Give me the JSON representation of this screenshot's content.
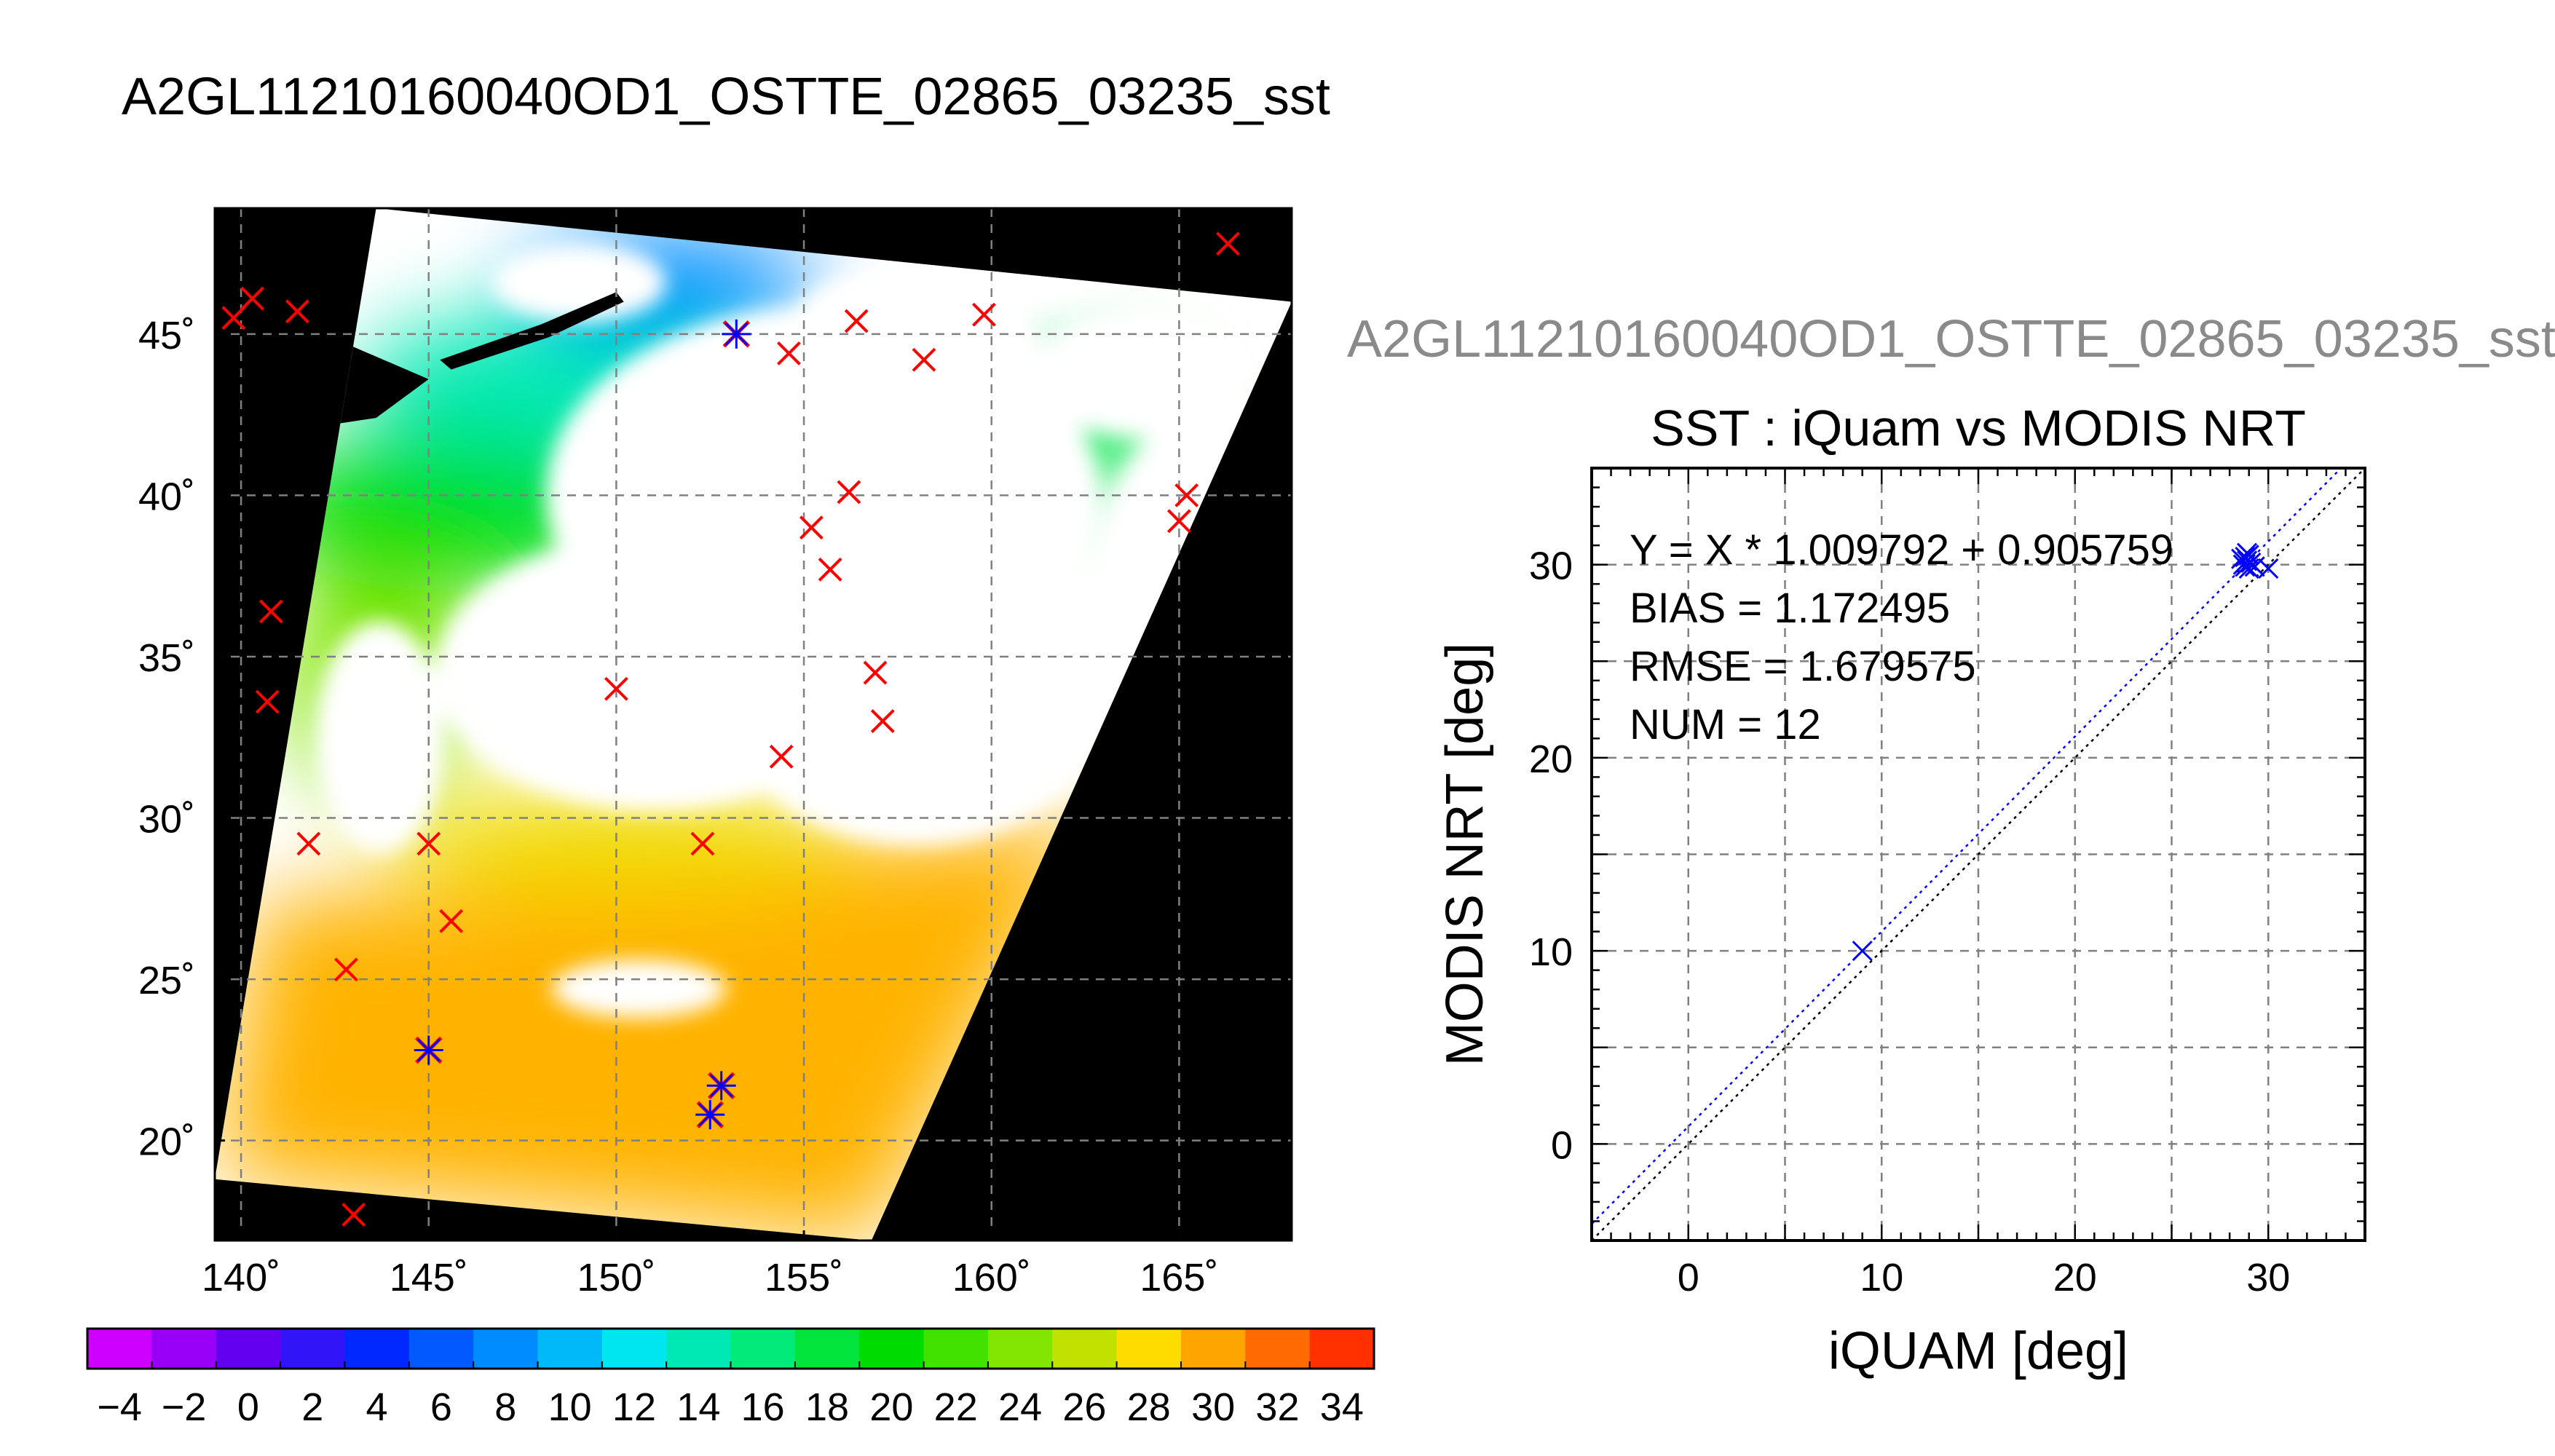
{
  "title": "A2GL11210160040OD1_OSTTE_02865_03235_sst",
  "colors": {
    "background": "#ffffff",
    "cloud_mask": "#ffffff",
    "no_data": "#000000",
    "iquam_marker": "#ff0000",
    "matchup_marker": "#0000ff",
    "fit_line": "#0000ff",
    "identity_line": "#000000",
    "grid": "#808080"
  },
  "chart_data": [
    {
      "type": "heatmap",
      "name": "SST swath map",
      "xlabel": "",
      "ylabel": "",
      "xlim": [
        139.3,
        168.0
      ],
      "ylim": [
        16.9,
        48.9
      ],
      "lon_ticks": [
        140,
        145,
        150,
        155,
        160,
        165
      ],
      "lat_ticks": [
        20,
        25,
        30,
        35,
        40,
        45
      ],
      "lon_tick_labels": [
        "140˚",
        "145˚",
        "150˚",
        "155˚",
        "160˚",
        "165˚"
      ],
      "lat_tick_labels": [
        "20˚",
        "25˚",
        "30˚",
        "35˚",
        "40˚",
        "45˚"
      ],
      "grid": true,
      "swath_corners": [
        {
          "lon": 143.6,
          "lat": 48.9
        },
        {
          "lon": 168.0,
          "lat": 46.0
        },
        {
          "lon": 156.8,
          "lat": 16.9
        },
        {
          "lon": 139.3,
          "lat": 18.8
        }
      ],
      "colorbar": {
        "vmin": -5,
        "vmax": 35,
        "step": 2,
        "tick_labels": [
          "−4",
          "−2",
          "0",
          "2",
          "4",
          "6",
          "8",
          "10",
          "12",
          "14",
          "16",
          "18",
          "20",
          "22",
          "24",
          "26",
          "28",
          "30",
          "32",
          "34"
        ],
        "tick_values": [
          -4,
          -2,
          0,
          2,
          4,
          6,
          8,
          10,
          12,
          14,
          16,
          18,
          20,
          22,
          24,
          26,
          28,
          30,
          32,
          34
        ]
      },
      "iquam_points": [
        {
          "lon": 139.8,
          "lat": 45.5
        },
        {
          "lon": 140.3,
          "lat": 46.1
        },
        {
          "lon": 141.5,
          "lat": 45.7
        },
        {
          "lon": 166.3,
          "lat": 47.8
        },
        {
          "lon": 154.6,
          "lat": 44.4
        },
        {
          "lon": 156.4,
          "lat": 45.4
        },
        {
          "lon": 158.2,
          "lat": 44.2
        },
        {
          "lon": 159.8,
          "lat": 45.6
        },
        {
          "lon": 156.2,
          "lat": 40.1
        },
        {
          "lon": 155.2,
          "lat": 39.0
        },
        {
          "lon": 155.7,
          "lat": 37.7
        },
        {
          "lon": 165.2,
          "lat": 40.0
        },
        {
          "lon": 165.0,
          "lat": 39.2
        },
        {
          "lon": 140.8,
          "lat": 36.4
        },
        {
          "lon": 140.7,
          "lat": 33.6
        },
        {
          "lon": 150.0,
          "lat": 34.0
        },
        {
          "lon": 156.9,
          "lat": 34.5
        },
        {
          "lon": 157.1,
          "lat": 33.0
        },
        {
          "lon": 154.4,
          "lat": 31.9
        },
        {
          "lon": 141.8,
          "lat": 29.2
        },
        {
          "lon": 145.0,
          "lat": 29.2
        },
        {
          "lon": 152.3,
          "lat": 29.2
        },
        {
          "lon": 145.6,
          "lat": 26.8
        },
        {
          "lon": 142.8,
          "lat": 25.3
        },
        {
          "lon": 143.0,
          "lat": 17.7
        }
      ],
      "matchup_points": [
        {
          "lon": 153.2,
          "lat": 45.0
        },
        {
          "lon": 145.0,
          "lat": 22.8
        },
        {
          "lon": 152.8,
          "lat": 21.7
        },
        {
          "lon": 152.5,
          "lat": 20.8
        }
      ]
    },
    {
      "type": "scatter",
      "title": "A2GL11210160040OD1_OSTTE_02865_03235_sst",
      "subtitle": "SST : iQuam vs MODIS NRT",
      "xlabel": "iQUAM [deg]",
      "ylabel": "MODIS NRT [deg]",
      "xlim": [
        -5,
        35
      ],
      "ylim": [
        -5,
        35
      ],
      "x_ticks": [
        0,
        10,
        20,
        30
      ],
      "y_ticks": [
        0,
        10,
        20,
        30
      ],
      "x_tick_labels": [
        "0",
        "10",
        "20",
        "30"
      ],
      "y_tick_labels": [
        "0",
        "10",
        "20",
        "30"
      ],
      "grid": true,
      "stats": {
        "fit": "Y = X * 1.009792 + 0.905759",
        "bias": "BIAS = 1.172495",
        "rmse": "RMSE = 1.679575",
        "num": "NUM = 12"
      },
      "fit_line": {
        "slope": 1.009792,
        "intercept": 0.905759
      },
      "points": [
        {
          "x": 9.0,
          "y": 10.0
        },
        {
          "x": 28.8,
          "y": 30.4
        },
        {
          "x": 28.9,
          "y": 30.2
        },
        {
          "x": 28.7,
          "y": 30.0
        },
        {
          "x": 29.0,
          "y": 30.5
        },
        {
          "x": 28.8,
          "y": 29.9
        },
        {
          "x": 29.1,
          "y": 30.1
        },
        {
          "x": 28.9,
          "y": 30.6
        },
        {
          "x": 29.3,
          "y": 29.9
        },
        {
          "x": 28.6,
          "y": 30.3
        },
        {
          "x": 29.0,
          "y": 29.8
        },
        {
          "x": 30.0,
          "y": 29.8
        }
      ]
    }
  ]
}
